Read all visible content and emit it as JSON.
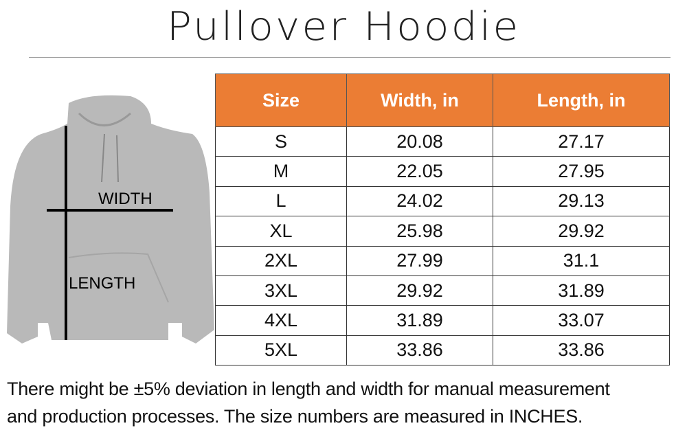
{
  "title": "Pullover Hoodie",
  "diagram": {
    "width_label": "WIDTH",
    "length_label": "LENGTH"
  },
  "table": {
    "headers": [
      "Size",
      "Width, in",
      "Length, in"
    ],
    "header_color": "#eb7d34",
    "rows": [
      [
        "S",
        "20.08",
        "27.17"
      ],
      [
        "M",
        "22.05",
        "27.95"
      ],
      [
        "L",
        "24.02",
        "29.13"
      ],
      [
        "XL",
        "25.98",
        "29.92"
      ],
      [
        "2XL",
        "27.99",
        "31.1"
      ],
      [
        "3XL",
        "29.92",
        "31.89"
      ],
      [
        "4XL",
        "31.89",
        "33.07"
      ],
      [
        "5XL",
        "33.86",
        "33.86"
      ]
    ]
  },
  "footer": {
    "line1": "There might be ±5% deviation in length and width for manual measurement",
    "line2": "and production processes. The size numbers are measured in INCHES."
  }
}
